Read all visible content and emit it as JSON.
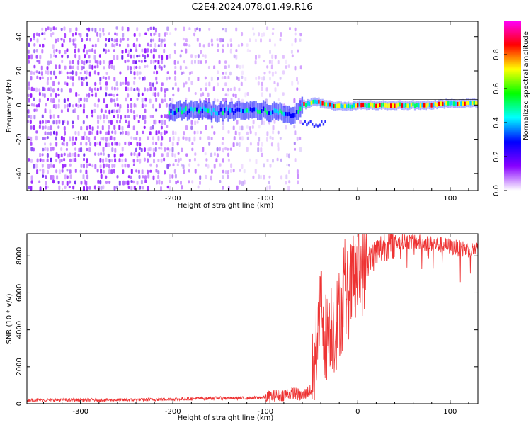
{
  "title": "C2E4.2024.078.01.49.R16",
  "chart_data": [
    {
      "type": "heatmap",
      "xlabel": "Height of straight line (km)",
      "ylabel": "Frequency (Hz)",
      "xlim": [
        -358,
        130
      ],
      "ylim": [
        -50,
        49
      ],
      "xticks": [
        -300,
        -200,
        -100,
        0,
        100
      ],
      "yticks": [
        -40,
        -20,
        0,
        20,
        40
      ],
      "colorbar": {
        "label": "Normalized spectral amplitude",
        "range": [
          0,
          1
        ],
        "ticks": [
          0.0,
          0.2,
          0.4,
          0.6,
          0.8
        ],
        "colormap": [
          "#ff00ff",
          "#ff0000",
          "#ffff00",
          "#00ff00",
          "#00ffff",
          "#0000ff",
          "#8800ff",
          "#ffffff"
        ]
      },
      "signal_ridge": {
        "x": [
          -205,
          -180,
          -150,
          -120,
          -90,
          -70,
          -60,
          -45,
          -30,
          -15,
          0,
          20,
          50,
          80,
          100,
          130
        ],
        "y": [
          -4,
          -3,
          -4,
          -3,
          -4,
          -6,
          0,
          2,
          0,
          -1,
          0,
          0,
          0,
          0,
          1,
          1
        ]
      },
      "background_color": "#8800ff"
    },
    {
      "type": "line",
      "xlabel": "Height of straight line (km)",
      "ylabel": "SNR (10 * v/v)",
      "xlim": [
        -358,
        130
      ],
      "ylim": [
        0,
        9200
      ],
      "xticks": [
        -300,
        -200,
        -100,
        0,
        100
      ],
      "yticks": [
        0,
        2000,
        4000,
        6000,
        8000
      ],
      "series": [
        {
          "color": "#ee3333",
          "x": [
            -358,
            -300,
            -250,
            -200,
            -150,
            -120,
            -100,
            -80,
            -70,
            -60,
            -50,
            -45,
            -40,
            -35,
            -30,
            -25,
            -20,
            -15,
            -10,
            -5,
            0,
            10,
            20,
            30,
            40,
            50,
            70,
            90,
            110,
            130
          ],
          "y": [
            200,
            200,
            200,
            250,
            300,
            300,
            350,
            500,
            600,
            400,
            800,
            3000,
            5500,
            3500,
            4500,
            4000,
            5000,
            5500,
            6000,
            6500,
            7000,
            7600,
            8200,
            8600,
            8700,
            8800,
            8700,
            8600,
            8400,
            8300
          ]
        }
      ]
    }
  ]
}
